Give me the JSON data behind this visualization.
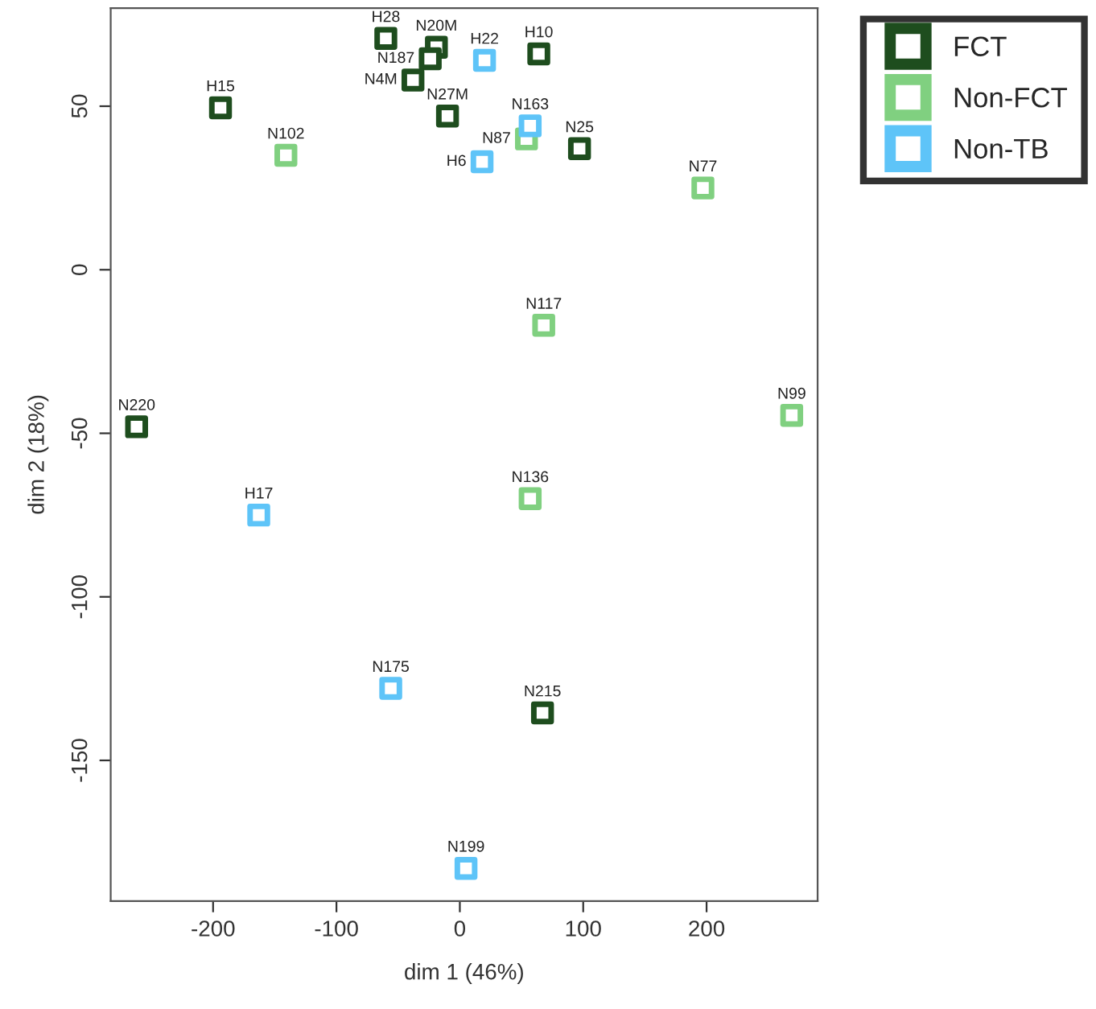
{
  "chart_data": {
    "type": "scatter",
    "xlabel": "dim 1 (46%)",
    "ylabel": "dim 2 (18%)",
    "xlim": [
      -283,
      290
    ],
    "ylim": [
      -193,
      80
    ],
    "xticks": [
      -200,
      -100,
      0,
      100,
      200
    ],
    "yticks": [
      -150,
      -100,
      -50,
      0,
      50
    ],
    "grid": false,
    "legend": "top right",
    "marker": "square",
    "series": [
      {
        "name": "FCT",
        "color": "#1e4d1e",
        "x": [
          -60,
          -19,
          -24,
          64,
          -38,
          -194,
          -10,
          97,
          -262,
          67
        ],
        "values": [
          70.7,
          68,
          64.5,
          66,
          58,
          49.5,
          47,
          37,
          -48,
          -135.5
        ]
      },
      {
        "name": "Non-FCT",
        "color": "#80d080",
        "x": [
          54,
          -141,
          197,
          68,
          269,
          57
        ],
        "values": [
          40,
          35,
          25,
          -17,
          -44.5,
          -70
        ]
      },
      {
        "name": "Non-TB",
        "color": "#5ec4f8",
        "x": [
          20,
          57,
          18,
          -163,
          -56,
          5
        ],
        "values": [
          64,
          44,
          33,
          -75,
          -128,
          -183
        ]
      }
    ],
    "annotations": [
      {
        "text": "H28",
        "x": -60,
        "y": 70.7
      },
      {
        "text": "N20M",
        "x": -19,
        "y": 68
      },
      {
        "text": "N187",
        "x": -24,
        "y": 64.5
      },
      {
        "text": "H10",
        "x": 64,
        "y": 66
      },
      {
        "text": "N4M",
        "x": -38,
        "y": 58
      },
      {
        "text": "H15",
        "x": -194,
        "y": 49.5
      },
      {
        "text": "N27M",
        "x": -10,
        "y": 47
      },
      {
        "text": "N25",
        "x": 97,
        "y": 37
      },
      {
        "text": "N220",
        "x": -262,
        "y": -48
      },
      {
        "text": "N215",
        "x": 67,
        "y": -135.5
      },
      {
        "text": "N87",
        "x": 54,
        "y": 40
      },
      {
        "text": "N102",
        "x": -141,
        "y": 35
      },
      {
        "text": "N77",
        "x": 197,
        "y": 25
      },
      {
        "text": "N117",
        "x": 68,
        "y": -17
      },
      {
        "text": "N99",
        "x": 269,
        "y": -44.5
      },
      {
        "text": "N136",
        "x": 57,
        "y": -70
      },
      {
        "text": "H22",
        "x": 20,
        "y": 64
      },
      {
        "text": "N163",
        "x": 57,
        "y": 44
      },
      {
        "text": "H6",
        "x": 18,
        "y": 33
      },
      {
        "text": "H17",
        "x": -163,
        "y": -75
      },
      {
        "text": "N175",
        "x": -56,
        "y": -128
      },
      {
        "text": "N199",
        "x": 5,
        "y": -183
      }
    ]
  }
}
